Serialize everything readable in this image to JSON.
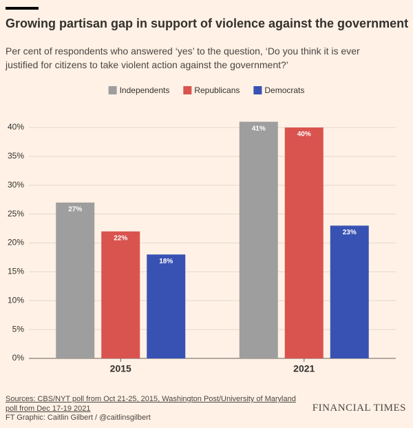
{
  "chart_data": {
    "type": "bar",
    "title": "Growing partisan gap in support of violence against the government",
    "subtitle": "Per cent of respondents who answered ‘yes’ to the question, ‘Do you think it is ever justified for citizens to take violent action against the government?’",
    "categories": [
      "2015",
      "2021"
    ],
    "series": [
      {
        "name": "Independents",
        "color": "#9e9e9e",
        "values": [
          27,
          41
        ],
        "value_labels": [
          "27%",
          "41%"
        ]
      },
      {
        "name": "Republicans",
        "color": "#d9534f",
        "values": [
          22,
          40
        ],
        "value_labels": [
          "22%",
          "40%"
        ]
      },
      {
        "name": "Democrats",
        "color": "#3852b4",
        "values": [
          18,
          23
        ],
        "value_labels": [
          "18%",
          "23%"
        ]
      }
    ],
    "ylim": [
      0,
      42
    ],
    "yticks": [
      {
        "value": 0,
        "label": "0%"
      },
      {
        "value": 5,
        "label": "5%"
      },
      {
        "value": 10,
        "label": "10%"
      },
      {
        "value": 15,
        "label": "15%"
      },
      {
        "value": 20,
        "label": "20%"
      },
      {
        "value": 25,
        "label": "25%"
      },
      {
        "value": 30,
        "label": "30%"
      },
      {
        "value": 35,
        "label": "35%"
      },
      {
        "value": 40,
        "label": "40%"
      }
    ],
    "grid": true,
    "source": "Sources: CBS/NYT poll from Oct 21-25, 2015, Washington Post/University of Maryland poll from Dec 17-19 2021",
    "credit": "FT Graphic: Caitlin Gilbert / @caitlinsgilbert",
    "logo": "FINANCIAL TIMES"
  }
}
